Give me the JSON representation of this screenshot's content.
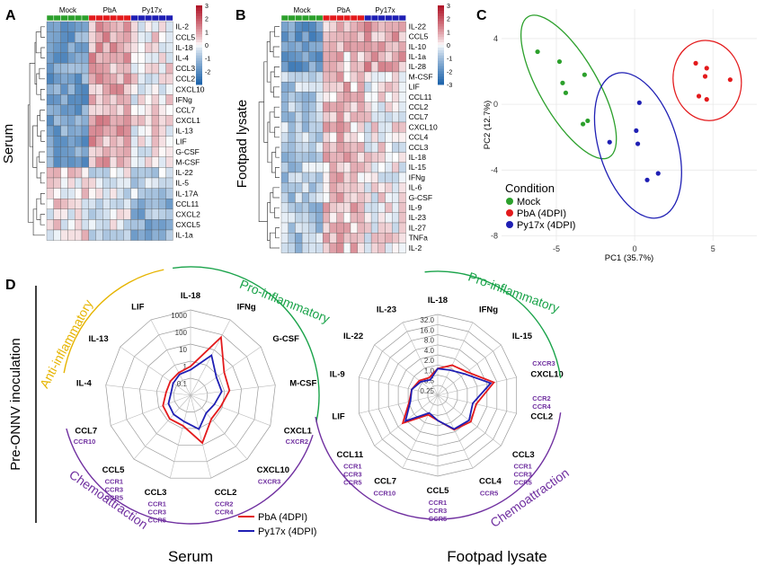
{
  "colors": {
    "heat_pos": "#b2182b",
    "heat_neg": "#2166ac",
    "mock": "#2ca02c",
    "pba": "#e31a1c",
    "py17x": "#1f1fb4",
    "anti": "#e6b400",
    "pro": "#1aa34a",
    "chemo": "#7030a0",
    "receptor": "#7030a0"
  },
  "panelA": {
    "letter": "A",
    "side_label": "Serum",
    "group_labels": [
      "Mock",
      "PbA",
      "Py17x"
    ],
    "genes": [
      "IL-2",
      "CCL5",
      "IL-18",
      "IL-4",
      "CCL3",
      "CCL2",
      "CXCL10",
      "IFNg",
      "CCL7",
      "CXCL1",
      "IL-13",
      "LIF",
      "G-CSF",
      "M-CSF",
      "IL-22",
      "IL-5",
      "IL-17A",
      "CCL11",
      "CXCL2",
      "CXCL5",
      "IL-1a"
    ],
    "scale_ticks": [
      "3",
      "2",
      "1",
      "0",
      "-1",
      "-2"
    ]
  },
  "panelB": {
    "letter": "B",
    "side_label": "Footpad lysate",
    "group_labels": [
      "Mock",
      "PbA",
      "Py17x"
    ],
    "genes": [
      "IL-22",
      "CCL5",
      "IL-10",
      "IL-1a",
      "IL-28",
      "M-CSF",
      "LIF",
      "CCL11",
      "CCL2",
      "CCL7",
      "CXCL10",
      "CCL4",
      "CCL3",
      "IL-18",
      "IL-15",
      "IFNg",
      "IL-6",
      "G-CSF",
      "IL-9",
      "IL-23",
      "IL-27",
      "TNFa",
      "IL-2"
    ],
    "scale_ticks": [
      "3",
      "2",
      "1",
      "0",
      "-1",
      "-2",
      "-3"
    ]
  },
  "panelC": {
    "letter": "C",
    "chart_data": {
      "type": "scatter",
      "xlabel": "PC1 (35.7%)",
      "ylabel": "PC2 (12.7%)",
      "xticks": [
        -5,
        0,
        5
      ],
      "yticks": [
        4,
        0,
        -4,
        -8
      ],
      "xlim": [
        -8.5,
        7.8
      ],
      "ylim": [
        -8.3,
        5.8
      ],
      "legend_title": "Condition",
      "legend_position": "bottom-left",
      "series": [
        {
          "name": "Mock",
          "color": "#2ca02c",
          "points": [
            [
              -6.2,
              3.2
            ],
            [
              -4.8,
              2.6
            ],
            [
              -3.2,
              1.8
            ],
            [
              -4.6,
              1.3
            ],
            [
              -4.4,
              0.7
            ],
            [
              -3.0,
              -1.0
            ],
            [
              -3.3,
              -1.2
            ]
          ]
        },
        {
          "name": "PbA (4DPI)",
          "color": "#e31a1c",
          "points": [
            [
              3.9,
              2.5
            ],
            [
              4.6,
              2.2
            ],
            [
              4.5,
              1.7
            ],
            [
              6.1,
              1.5
            ],
            [
              4.1,
              0.5
            ],
            [
              4.6,
              0.3
            ]
          ]
        },
        {
          "name": "Py17x (4DPI)",
          "color": "#1f1fb4",
          "points": [
            [
              0.3,
              0.1
            ],
            [
              0.1,
              -1.6
            ],
            [
              -1.6,
              -2.3
            ],
            [
              0.2,
              -2.4
            ],
            [
              1.5,
              -4.2
            ],
            [
              0.8,
              -4.6
            ]
          ]
        }
      ]
    }
  },
  "panelD": {
    "letter": "D",
    "side_label": "Pre-ONNV inoculation",
    "legend": [
      "PbA (4DPI)",
      "Py17x (4DPI)"
    ],
    "serum": {
      "title": "Serum",
      "ring_labels": [
        "1000",
        "100",
        "10",
        "1",
        "0.1"
      ],
      "axes": [
        "IL-18",
        "IFNg",
        "G-CSF",
        "M-CSF",
        "CXCL1",
        "CXCL10",
        "CCL2",
        "CCL3",
        "CCL5",
        "CCL7",
        "IL-4",
        "IL-13",
        "LIF"
      ],
      "pba": [
        1.5,
        110,
        6,
        5,
        2.2,
        2,
        16,
        2,
        2,
        1.6,
        0.9,
        0.9,
        1
      ],
      "py17x": [
        1,
        10,
        2,
        2,
        1,
        0.8,
        3,
        1.2,
        1,
        0.8,
        0.5,
        0.6,
        0.8
      ],
      "arc_labels": {
        "anti": "Anti-inflammatory",
        "pro": "Pro-inflammatory",
        "chemo": "Chemoattraction"
      },
      "receptors": [
        {
          "ligand": "CXCL1",
          "receptors": [
            "CXCR2"
          ]
        },
        {
          "ligand": "CXCL10",
          "receptors": [
            "CXCR3"
          ]
        },
        {
          "ligand": "CCL2",
          "receptors": [
            "CCR2",
            "CCR4"
          ]
        },
        {
          "ligand": "CCL3",
          "receptors": [
            "CCR1",
            "CCR3",
            "CCR5"
          ]
        },
        {
          "ligand": "CCL5",
          "receptors": [
            "CCR1",
            "CCR3",
            "CCR5"
          ]
        },
        {
          "ligand": "CCL7",
          "receptors": [
            "CCR10"
          ]
        }
      ]
    },
    "footpad": {
      "title": "Footpad lysate",
      "ring_labels": [
        "32.0",
        "16.0",
        "8.0",
        "4.0",
        "2.0",
        "1.0",
        "0.5",
        "0.25"
      ],
      "axes": [
        "IL-18",
        "IFNg",
        "IL-15",
        "CXCL10",
        "CCL2",
        "CCL3",
        "CCL4",
        "CCL5",
        "CCL7",
        "CCL11",
        "LIF",
        "IL-9",
        "IL-22",
        "IL-23"
      ],
      "pba": [
        1.1,
        1.7,
        2.2,
        8,
        2.5,
        3,
        2.3,
        1,
        0.8,
        3.5,
        1.3,
        1.1,
        0.9,
        0.7
      ],
      "py17x": [
        1.1,
        1.2,
        1.8,
        6.5,
        2,
        2.6,
        2.2,
        1,
        0.7,
        2.8,
        1.2,
        1.1,
        0.8,
        0.6
      ],
      "arc_labels": {
        "pro": "Pro-inflammatory",
        "chemo": "Chemoattraction"
      },
      "receptors": [
        {
          "ligand": "CXCL10",
          "receptors": [
            "CXCR3"
          ]
        },
        {
          "ligand": "CCL2",
          "receptors": [
            "CCR2",
            "CCR4"
          ]
        },
        {
          "ligand": "CCL3",
          "receptors": [
            "CCR1",
            "CCR3",
            "CCR5"
          ]
        },
        {
          "ligand": "CCL4",
          "receptors": [
            "CCR5"
          ]
        },
        {
          "ligand": "CCL5",
          "receptors": [
            "CCR1",
            "CCR3",
            "CCR5"
          ]
        },
        {
          "ligand": "CCL7",
          "receptors": [
            "CCR10"
          ]
        },
        {
          "ligand": "CCL11",
          "receptors": [
            "CCR1",
            "CCR3",
            "CCR5"
          ]
        }
      ]
    }
  }
}
